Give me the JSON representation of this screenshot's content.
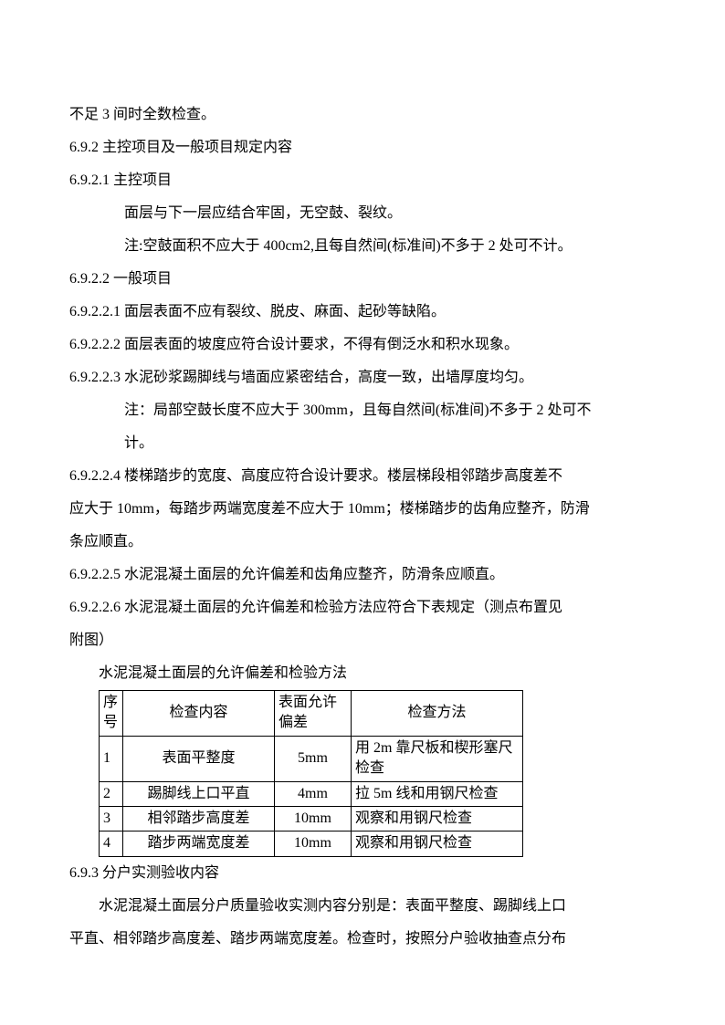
{
  "lines": {
    "l1": "不足 3 间时全数检查。",
    "l2": "6.9.2 主控项目及一般项目规定内容",
    "l3": "6.9.2.1 主控项目",
    "l4": "面层与下一层应结合牢固，无空鼓、裂纹。",
    "l5": "注:空鼓面积不应大于 400cm2,且每自然间(标准间)不多于 2 处可不计。",
    "l6": "6.9.2.2 一般项目",
    "l7": "6.9.2.2.1 面层表面不应有裂纹、脱皮、麻面、起砂等缺陷。",
    "l8": "6.9.2.2.2 面层表面的坡度应符合设计要求，不得有倒泛水和积水现象。",
    "l9": "6.9.2.2.3 水泥砂浆踢脚线与墙面应紧密结合，高度一致，出墙厚度均匀。",
    "l10a": "注：局部空鼓长度不应大于 300mm，且每自然间(标准间)不多于 2 处可不",
    "l10b": "计。",
    "l11a": "6.9.2.2.4 楼梯踏步的宽度、高度应符合设计要求。楼层梯段相邻踏步高度差不",
    "l11b": "应大于 10mm，每踏步两端宽度差不应大于 10mm；楼梯踏步的齿角应整齐，防滑",
    "l11c": "条应顺直。",
    "l12": "6.9.2.2.5 水泥混凝土面层的允许偏差和齿角应整齐，防滑条应顺直。",
    "l13a": "6.9.2.2.6 水泥混凝土面层的允许偏差和检验方法应符合下表规定（测点布置见",
    "l13b": "附图）",
    "table_title": "水泥混凝土面层的允许偏差和检验方法",
    "l14": "6.9.3 分户实测验收内容",
    "l15a": "水泥混凝土面层分户质量验收实测内容分别是：表面平整度、踢脚线上口",
    "l15b": "平直、相邻踏步高度差、踏步两端宽度差。检查时，按照分户验收抽查点分布"
  },
  "table": {
    "headers": {
      "num": "序号",
      "content": "检查内容",
      "tolerance": "表面允许偏差",
      "method": "检查方法"
    },
    "rows": [
      {
        "num": "1",
        "content": "表面平整度",
        "tolerance": "5mm",
        "method": "用 2m 靠尺板和楔形塞尺检查"
      },
      {
        "num": "2",
        "content": "踢脚线上口平直",
        "tolerance": "4mm",
        "method": "拉 5m 线和用钢尺检查"
      },
      {
        "num": "3",
        "content": "相邻踏步高度差",
        "tolerance": "10mm",
        "method": "观察和用钢尺检查"
      },
      {
        "num": "4",
        "content": "踏步两端宽度差",
        "tolerance": "10mm",
        "method": "观察和用钢尺检查"
      }
    ]
  }
}
